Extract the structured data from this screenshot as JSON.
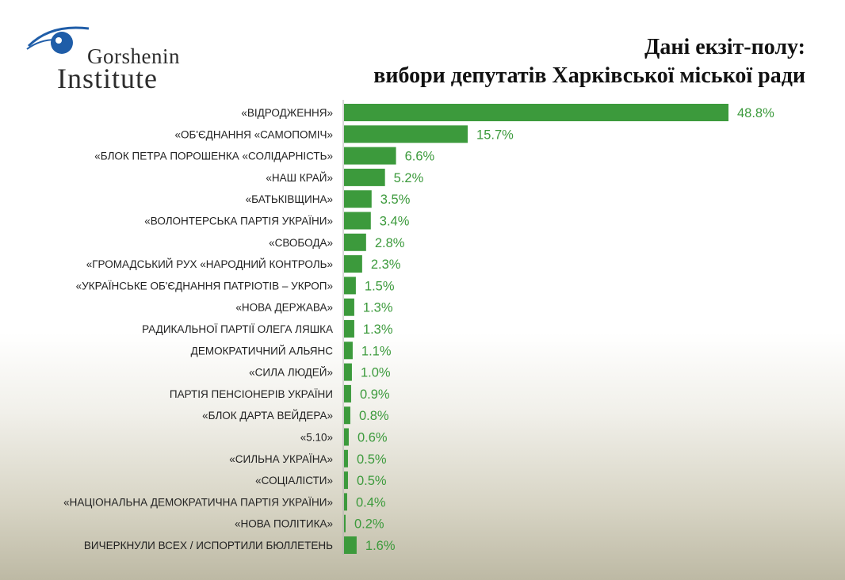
{
  "logo": {
    "line1": "Gorshenin",
    "line2": "Institute",
    "icon": "eye-logo-icon"
  },
  "header": {
    "title_line1": "Дані екзіт-полу:",
    "title_line2": "вибори депутатів Харківської міської ради"
  },
  "colors": {
    "bar": "#3c9a3c",
    "value_label": "#3c9a3c",
    "category_label": "#222222"
  },
  "chart_data": {
    "type": "bar",
    "orientation": "horizontal",
    "categories": [
      "«ВІДРОДЖЕННЯ»",
      "«ОБ'ЄДНАННЯ «САМОПОМІЧ»",
      "«БЛОК ПЕТРА ПОРОШЕНКА «СОЛІДАРНІСТЬ»",
      "«НАШ КРАЙ»",
      "«БАТЬКІВЩИНА»",
      "«ВОЛОНТЕРСЬКА ПАРТІЯ УКРАЇНИ»",
      "«СВОБОДА»",
      "«ГРОМАДСЬКИЙ РУХ «НАРОДНИЙ КОНТРОЛЬ»",
      "«УКРАЇНСЬКЕ ОБ'ЄДНАННЯ ПАТРІОТІВ – УКРОП»",
      "«НОВА ДЕРЖАВА»",
      "РАДИКАЛЬНОЇ ПАРТІЇ ОЛЕГА ЛЯШКА",
      "ДЕМОКРАТИЧНИЙ АЛЬЯНС",
      "«СИЛА ЛЮДЕЙ»",
      "ПАРТІЯ ПЕНСІОНЕРІВ УКРАЇНИ",
      "«БЛОК ДАРТА ВЕЙДЕРА»",
      "«5.10»",
      "«СИЛЬНА УКРАЇНА»",
      "«СОЦІАЛІСТИ»",
      "«НАЦІОНАЛЬНА ДЕМОКРАТИЧНА ПАРТІЯ УКРАЇНИ»",
      "«НОВА ПОЛІТИКА»",
      "ВИЧЕРКНУЛИ ВСЕХ / ИСПОРТИЛИ БЮЛЛЕТЕНЬ"
    ],
    "values": [
      48.8,
      15.7,
      6.6,
      5.2,
      3.5,
      3.4,
      2.8,
      2.3,
      1.5,
      1.3,
      1.3,
      1.1,
      1.0,
      0.9,
      0.8,
      0.6,
      0.5,
      0.5,
      0.4,
      0.2,
      1.6
    ],
    "value_labels": [
      "48.8%",
      "15.7%",
      "6.6%",
      "5.2%",
      "3.5%",
      "3.4%",
      "2.8%",
      "2.3%",
      "1.5%",
      "1.3%",
      "1.3%",
      "1.1%",
      "1.0%",
      "0.9%",
      "0.8%",
      "0.6%",
      "0.5%",
      "0.5%",
      "0.4%",
      "0.2%",
      "1.6%"
    ],
    "xlim": [
      0,
      48.8
    ],
    "grid": false,
    "legend": false
  }
}
